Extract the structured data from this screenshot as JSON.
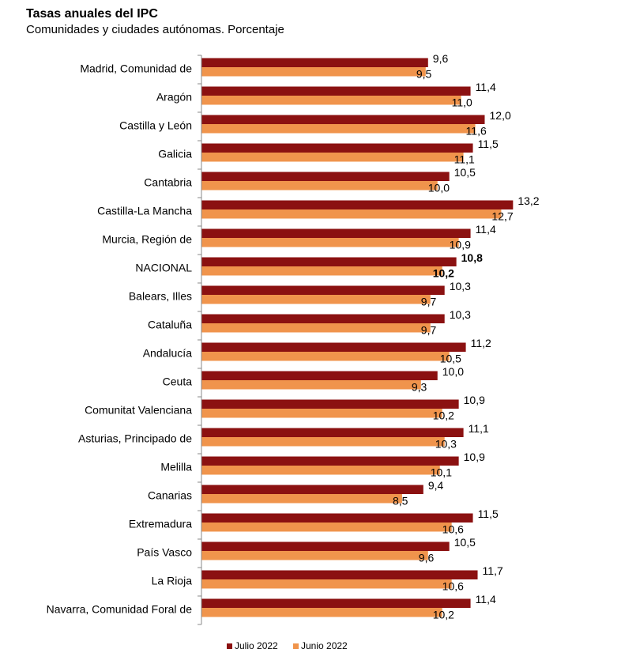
{
  "chart_data": {
    "type": "hbar",
    "title": "Tasas anuales del IPC",
    "subtitle": "Comunidades y ciudades autónomas. Porcentaje",
    "categories": [
      "Madrid, Comunidad de",
      "Aragón",
      "Castilla y León",
      "Galicia",
      "Cantabria",
      "Castilla-La Mancha",
      "Murcia, Región de",
      "NACIONAL",
      "Balears, Illes",
      "Cataluña",
      "Andalucía",
      "Ceuta",
      "Comunitat Valenciana",
      "Asturias, Principado de",
      "Melilla",
      "Canarias",
      "Extremadura",
      "País Vasco",
      "La Rioja",
      "Navarra, Comunidad Foral de"
    ],
    "emphasis": "NACIONAL",
    "xlim": [
      0,
      16
    ],
    "series": [
      {
        "name": "Julio 2022",
        "color": "#8b1111",
        "values": [
          9.6,
          11.4,
          12.0,
          11.5,
          10.5,
          13.2,
          11.4,
          10.8,
          10.3,
          10.3,
          11.2,
          10.0,
          10.9,
          11.1,
          10.9,
          9.4,
          11.5,
          10.5,
          11.7,
          11.4
        ],
        "value_labels": [
          "9,6",
          "11,4",
          "12,0",
          "11,5",
          "10,5",
          "13,2",
          "11,4",
          "10,8",
          "10,3",
          "10,3",
          "11,2",
          "10,0",
          "10,9",
          "11,1",
          "10,9",
          "9,4",
          "11,5",
          "10,5",
          "11,7",
          "11,4"
        ]
      },
      {
        "name": "Junio 2022",
        "color": "#f0944c",
        "values": [
          9.5,
          11.0,
          11.6,
          11.1,
          10.0,
          12.7,
          10.9,
          10.2,
          9.7,
          9.7,
          10.5,
          9.3,
          10.2,
          10.3,
          10.1,
          8.5,
          10.6,
          9.6,
          10.6,
          10.2
        ],
        "value_labels": [
          "9,5",
          "11,0",
          "11,6",
          "11,1",
          "10,0",
          "12,7",
          "10,9",
          "10,2",
          "9,7",
          "9,7",
          "10,5",
          "9,3",
          "10,2",
          "10,3",
          "10,1",
          "8,5",
          "10,6",
          "9,6",
          "10,6",
          "10,2"
        ]
      }
    ]
  }
}
